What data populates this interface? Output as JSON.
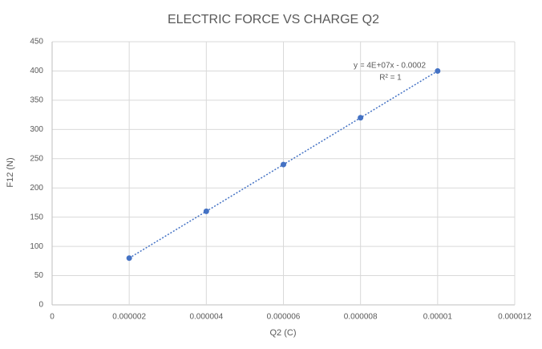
{
  "chart_data": {
    "type": "scatter",
    "title": "ELECTRIC FORCE VS CHARGE Q2",
    "x_label": "Q2 (C)",
    "y_label": "F12 (N)",
    "x": [
      2e-06,
      4e-06,
      6e-06,
      8e-06,
      1e-05
    ],
    "values": [
      80,
      160,
      240,
      320,
      400
    ],
    "color": "#4472c4",
    "trendline": {
      "equation": "y = 4E+07x - 0.0002",
      "r_squared": "R² = 1"
    },
    "xlim": [
      0,
      1.2e-05
    ],
    "xticks": [
      0,
      2e-06,
      4e-06,
      6e-06,
      8e-06,
      1e-05,
      1.2e-05
    ],
    "ylim": [
      0,
      450
    ],
    "yticks": [
      0,
      50,
      100,
      150,
      200,
      250,
      300,
      350,
      400,
      450
    ],
    "grid": true
  }
}
